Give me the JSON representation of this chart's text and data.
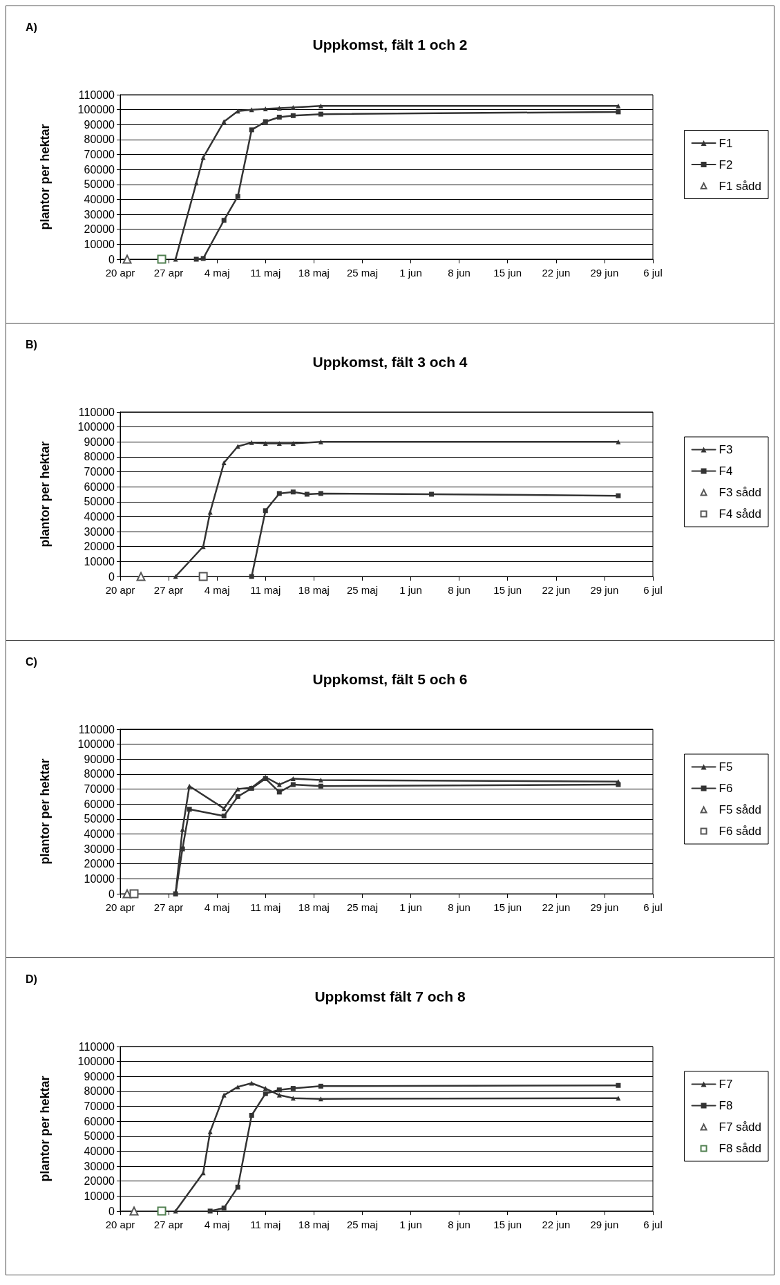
{
  "chart_data": [
    {
      "type": "line",
      "title": "Uppkomst, fält 1 och 2",
      "annotations": [
        "A)"
      ],
      "ylabel": "plantor per hektar",
      "xlim": [
        "--04-20",
        "--07-06"
      ],
      "xticks": [
        {
          "value": "--04-20",
          "label": "20 apr"
        },
        {
          "value": "--04-27",
          "label": "27 apr"
        },
        {
          "value": "--05-04",
          "label": "4 maj"
        },
        {
          "value": "--05-11",
          "label": "11 maj"
        },
        {
          "value": "--05-18",
          "label": "18 maj"
        },
        {
          "value": "--05-25",
          "label": "25 maj"
        },
        {
          "value": "--06-01",
          "label": "1 jun"
        },
        {
          "value": "--06-08",
          "label": "8 jun"
        },
        {
          "value": "--06-15",
          "label": "15 jun"
        },
        {
          "value": "--06-22",
          "label": "22 jun"
        },
        {
          "value": "--06-29",
          "label": "29 jun"
        },
        {
          "value": "--07-06",
          "label": "6 jul"
        }
      ],
      "ylim": [
        0,
        110000
      ],
      "yticks": [
        0,
        10000,
        20000,
        30000,
        40000,
        50000,
        60000,
        70000,
        80000,
        90000,
        100000,
        110000
      ],
      "grid": "y",
      "legend": "right",
      "series": [
        {
          "name": "F1",
          "marker": "triangle",
          "color": "#333333",
          "x": [
            "--04-28",
            "--05-01",
            "--05-02",
            "--05-05",
            "--05-07",
            "--05-09",
            "--05-11",
            "--05-13",
            "--05-15",
            "--05-19",
            "--07-01"
          ],
          "values": [
            0,
            51000,
            68000,
            92000,
            99000,
            100000,
            100500,
            101000,
            101500,
            102500,
            102500
          ]
        },
        {
          "name": "F2",
          "marker": "square",
          "color": "#333333",
          "x": [
            "--05-01",
            "--05-02",
            "--05-05",
            "--05-07",
            "--05-09",
            "--05-11",
            "--05-13",
            "--05-15",
            "--05-19",
            "--07-01"
          ],
          "values": [
            0,
            500,
            26000,
            42000,
            86500,
            92000,
            95000,
            96000,
            97000,
            98500
          ]
        },
        {
          "name": "F1 sådd",
          "type": "scatter",
          "marker": "triangle",
          "color": "#555555",
          "x": [
            "--04-21"
          ],
          "values": [
            0
          ]
        },
        {
          "type": "scatter",
          "marker": "square",
          "color": "#4f7f4f",
          "x": [
            "--04-26"
          ],
          "values": [
            0
          ]
        }
      ]
    },
    {
      "type": "line",
      "title": "Uppkomst, fält 3 och 4",
      "annotations": [
        "B)"
      ],
      "ylabel": "plantor per hektar",
      "xlim": [
        "--04-20",
        "--07-06"
      ],
      "xticks": [
        {
          "value": "--04-20",
          "label": "20 apr"
        },
        {
          "value": "--04-27",
          "label": "27 apr"
        },
        {
          "value": "--05-04",
          "label": "4 maj"
        },
        {
          "value": "--05-11",
          "label": "11 maj"
        },
        {
          "value": "--05-18",
          "label": "18 maj"
        },
        {
          "value": "--05-25",
          "label": "25 maj"
        },
        {
          "value": "--06-01",
          "label": "1 jun"
        },
        {
          "value": "--06-08",
          "label": "8 jun"
        },
        {
          "value": "--06-15",
          "label": "15 jun"
        },
        {
          "value": "--06-22",
          "label": "22 jun"
        },
        {
          "value": "--06-29",
          "label": "29 jun"
        },
        {
          "value": "--07-06",
          "label": "6 jul"
        }
      ],
      "ylim": [
        0,
        110000
      ],
      "yticks": [
        0,
        10000,
        20000,
        30000,
        40000,
        50000,
        60000,
        70000,
        80000,
        90000,
        100000,
        110000
      ],
      "grid": "y",
      "legend": "right",
      "series": [
        {
          "name": "F3",
          "marker": "triangle",
          "color": "#333333",
          "x": [
            "--04-28",
            "--05-02",
            "--05-03",
            "--05-05",
            "--05-07",
            "--05-09",
            "--05-11",
            "--05-13",
            "--05-15",
            "--05-19",
            "--07-01"
          ],
          "values": [
            0,
            20000,
            43000,
            76000,
            87000,
            89500,
            89000,
            89000,
            89000,
            90000,
            90000
          ]
        },
        {
          "name": "F4",
          "marker": "square",
          "color": "#333333",
          "x": [
            "--05-09",
            "--05-11",
            "--05-13",
            "--05-15",
            "--05-17",
            "--05-19",
            "--06-04",
            "--07-01"
          ],
          "values": [
            0,
            44000,
            55500,
            56500,
            55000,
            55500,
            55000,
            54000
          ]
        },
        {
          "name": "F3 sådd",
          "type": "scatter",
          "marker": "triangle",
          "color": "#555555",
          "x": [
            "--04-23"
          ],
          "values": [
            0
          ]
        },
        {
          "name": "F4 sådd",
          "type": "scatter",
          "marker": "square",
          "color": "#555555",
          "x": [
            "--05-02"
          ],
          "values": [
            0
          ]
        }
      ]
    },
    {
      "type": "line",
      "title": "Uppkomst, fält 5 och 6",
      "annotations": [
        "C)"
      ],
      "ylabel": "plantor per hektar",
      "xlim": [
        "--04-20",
        "--07-06"
      ],
      "xticks": [
        {
          "value": "--04-20",
          "label": "20 apr"
        },
        {
          "value": "--04-27",
          "label": "27 apr"
        },
        {
          "value": "--05-04",
          "label": "4 maj"
        },
        {
          "value": "--05-11",
          "label": "11 maj"
        },
        {
          "value": "--05-18",
          "label": "18 maj"
        },
        {
          "value": "--05-25",
          "label": "25 maj"
        },
        {
          "value": "--06-01",
          "label": "1 jun"
        },
        {
          "value": "--06-08",
          "label": "8 jun"
        },
        {
          "value": "--06-15",
          "label": "15 jun"
        },
        {
          "value": "--06-22",
          "label": "22 jun"
        },
        {
          "value": "--06-29",
          "label": "29 jun"
        },
        {
          "value": "--07-06",
          "label": "6 jul"
        }
      ],
      "ylim": [
        0,
        110000
      ],
      "yticks": [
        0,
        10000,
        20000,
        30000,
        40000,
        50000,
        60000,
        70000,
        80000,
        90000,
        100000,
        110000
      ],
      "grid": "y",
      "legend": "right",
      "series": [
        {
          "name": "F5",
          "marker": "triangle",
          "color": "#333333",
          "x": [
            "--04-28",
            "--04-29",
            "--04-30",
            "--05-05",
            "--05-07",
            "--05-09",
            "--05-11",
            "--05-13",
            "--05-15",
            "--05-19",
            "--07-01"
          ],
          "values": [
            0,
            43000,
            72000,
            57000,
            70000,
            71000,
            78000,
            73000,
            77000,
            76000,
            75000
          ]
        },
        {
          "name": "F6",
          "marker": "square",
          "color": "#333333",
          "x": [
            "--04-28",
            "--04-29",
            "--04-30",
            "--05-05",
            "--05-07",
            "--05-09",
            "--05-11",
            "--05-13",
            "--05-15",
            "--05-19",
            "--07-01"
          ],
          "values": [
            0,
            30000,
            56500,
            52000,
            65000,
            70500,
            77000,
            68000,
            73000,
            72000,
            73000
          ]
        },
        {
          "name": "F5 sådd",
          "type": "scatter",
          "marker": "triangle",
          "color": "#555555",
          "x": [
            "--04-21"
          ],
          "values": [
            0
          ]
        },
        {
          "name": "F6 sådd",
          "type": "scatter",
          "marker": "square",
          "color": "#555555",
          "x": [
            "--04-22"
          ],
          "values": [
            0
          ]
        }
      ]
    },
    {
      "type": "line",
      "title": "Uppkomst fält 7 och 8",
      "annotations": [
        "D)"
      ],
      "ylabel": "plantor per hektar",
      "xlim": [
        "--04-20",
        "--07-06"
      ],
      "xticks": [
        {
          "value": "--04-20",
          "label": "20 apr"
        },
        {
          "value": "--04-27",
          "label": "27 apr"
        },
        {
          "value": "--05-04",
          "label": "4 maj"
        },
        {
          "value": "--05-11",
          "label": "11 maj"
        },
        {
          "value": "--05-18",
          "label": "18 maj"
        },
        {
          "value": "--05-25",
          "label": "25 maj"
        },
        {
          "value": "--06-01",
          "label": "1 jun"
        },
        {
          "value": "--06-08",
          "label": "8 jun"
        },
        {
          "value": "--06-15",
          "label": "15 jun"
        },
        {
          "value": "--06-22",
          "label": "22 jun"
        },
        {
          "value": "--06-29",
          "label": "29 jun"
        },
        {
          "value": "--07-06",
          "label": "6 jul"
        }
      ],
      "ylim": [
        0,
        110000
      ],
      "yticks": [
        0,
        10000,
        20000,
        30000,
        40000,
        50000,
        60000,
        70000,
        80000,
        90000,
        100000,
        110000
      ],
      "grid": "y",
      "legend": "right",
      "series": [
        {
          "name": "F7",
          "marker": "triangle",
          "color": "#333333",
          "x": [
            "--04-28",
            "--05-02",
            "--05-03",
            "--05-05",
            "--05-07",
            "--05-09",
            "--05-11",
            "--05-13",
            "--05-15",
            "--05-19",
            "--07-01"
          ],
          "values": [
            0,
            25500,
            53000,
            77500,
            83000,
            85500,
            82000,
            77500,
            75500,
            75000,
            75500
          ]
        },
        {
          "name": "F8",
          "marker": "square",
          "color": "#333333",
          "x": [
            "--05-03",
            "--05-05",
            "--05-07",
            "--05-09",
            "--05-11",
            "--05-13",
            "--05-15",
            "--05-19",
            "--07-01"
          ],
          "values": [
            0,
            2000,
            16000,
            64000,
            78500,
            81000,
            82000,
            83500,
            84000
          ]
        },
        {
          "name": "F7 sådd",
          "type": "scatter",
          "marker": "triangle",
          "color": "#555555",
          "x": [
            "--04-22"
          ],
          "values": [
            0
          ]
        },
        {
          "name": "F8 sådd",
          "type": "scatter",
          "marker": "square",
          "color": "#4f7f4f",
          "x": [
            "--04-26"
          ],
          "values": [
            0
          ]
        }
      ]
    }
  ]
}
